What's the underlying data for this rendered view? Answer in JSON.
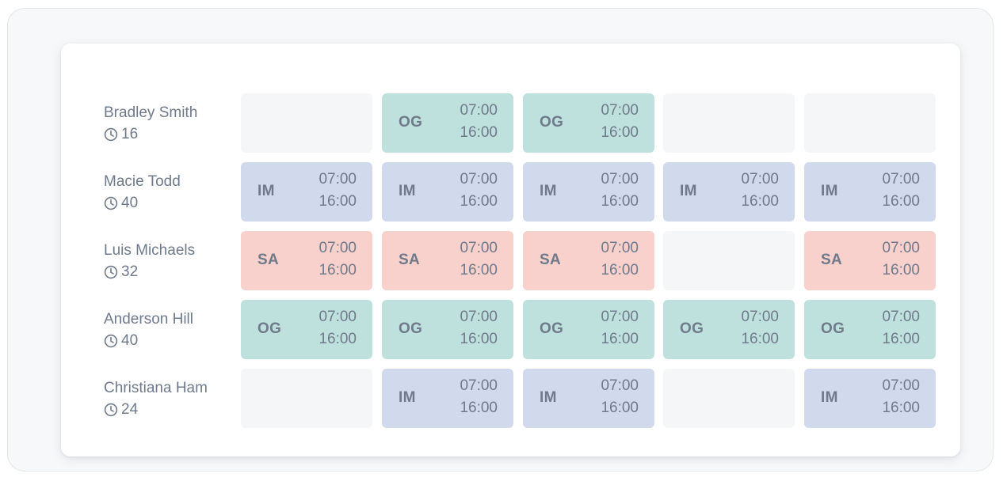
{
  "schedule": {
    "rows": [
      {
        "name": "Bradley Smith",
        "hours": "16",
        "shifts": [
          {
            "code": "",
            "start": "",
            "end": ""
          },
          {
            "code": "OG",
            "start": "07:00",
            "end": "16:00"
          },
          {
            "code": "OG",
            "start": "07:00",
            "end": "16:00"
          },
          {
            "code": "",
            "start": "",
            "end": ""
          },
          {
            "code": "",
            "start": "",
            "end": ""
          }
        ]
      },
      {
        "name": "Macie Todd",
        "hours": "40",
        "shifts": [
          {
            "code": "IM",
            "start": "07:00",
            "end": "16:00"
          },
          {
            "code": "IM",
            "start": "07:00",
            "end": "16:00"
          },
          {
            "code": "IM",
            "start": "07:00",
            "end": "16:00"
          },
          {
            "code": "IM",
            "start": "07:00",
            "end": "16:00"
          },
          {
            "code": "IM",
            "start": "07:00",
            "end": "16:00"
          }
        ]
      },
      {
        "name": "Luis Michaels",
        "hours": "32",
        "shifts": [
          {
            "code": "SA",
            "start": "07:00",
            "end": "16:00"
          },
          {
            "code": "SA",
            "start": "07:00",
            "end": "16:00"
          },
          {
            "code": "SA",
            "start": "07:00",
            "end": "16:00"
          },
          {
            "code": "",
            "start": "",
            "end": ""
          },
          {
            "code": "SA",
            "start": "07:00",
            "end": "16:00"
          }
        ]
      },
      {
        "name": "Anderson Hill",
        "hours": "40",
        "shifts": [
          {
            "code": "OG",
            "start": "07:00",
            "end": "16:00"
          },
          {
            "code": "OG",
            "start": "07:00",
            "end": "16:00"
          },
          {
            "code": "OG",
            "start": "07:00",
            "end": "16:00"
          },
          {
            "code": "OG",
            "start": "07:00",
            "end": "16:00"
          },
          {
            "code": "OG",
            "start": "07:00",
            "end": "16:00"
          }
        ]
      },
      {
        "name": "Christiana Ham",
        "hours": "24",
        "shifts": [
          {
            "code": "",
            "start": "",
            "end": ""
          },
          {
            "code": "IM",
            "start": "07:00",
            "end": "16:00"
          },
          {
            "code": "IM",
            "start": "07:00",
            "end": "16:00"
          },
          {
            "code": "",
            "start": "",
            "end": ""
          },
          {
            "code": "IM",
            "start": "07:00",
            "end": "16:00"
          }
        ]
      }
    ]
  },
  "icons": {
    "hours": "clock-icon"
  },
  "colors": {
    "OG": "#bfe1dd",
    "IM": "#d1d9ec",
    "SA": "#f8d0cc",
    "empty": "#f5f6f8",
    "text": "#6f7a8b"
  }
}
